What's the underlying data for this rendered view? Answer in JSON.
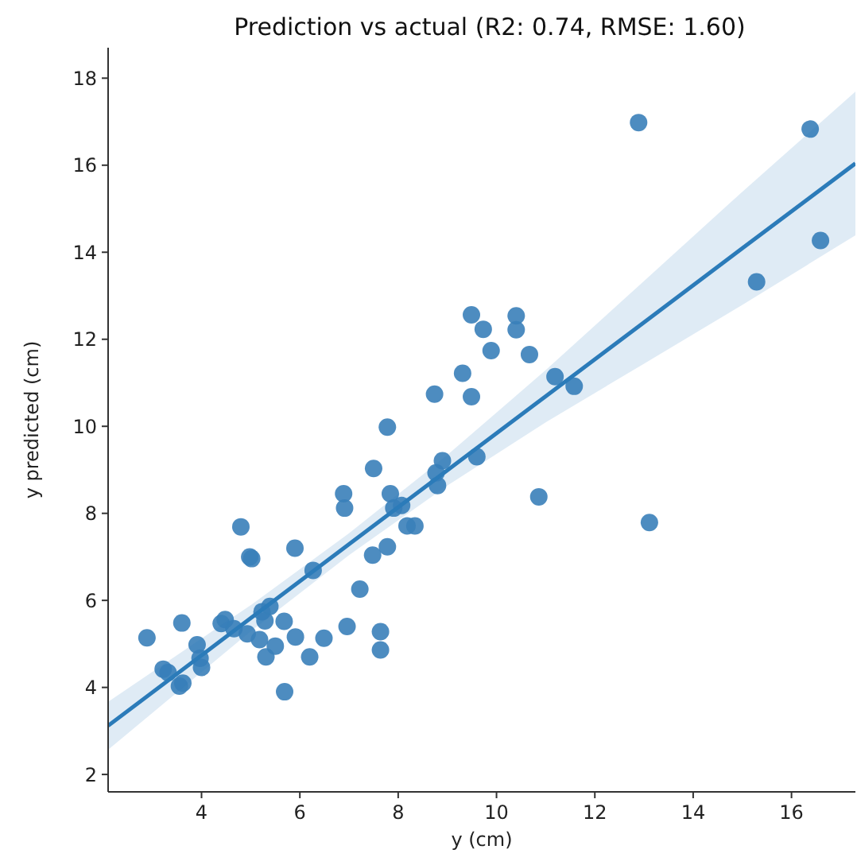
{
  "chart_data": {
    "type": "scatter",
    "title": "Prediction vs actual (R2: 0.74, RMSE: 1.60)",
    "xlabel": "y (cm)",
    "ylabel": "y predicted (cm)",
    "xlim": [
      2.1,
      17.3
    ],
    "ylim": [
      1.6,
      18.7
    ],
    "xticks": [
      4,
      6,
      8,
      10,
      12,
      14,
      16
    ],
    "yticks": [
      2,
      4,
      6,
      8,
      10,
      12,
      14,
      16,
      18
    ],
    "marker": "circle",
    "series": [
      {
        "color": "#3a80b9",
        "x": [
          2.89,
          3.22,
          3.32,
          3.55,
          3.62,
          3.6,
          3.91,
          3.97,
          4.0,
          4.4,
          4.48,
          4.66,
          4.8,
          4.98,
          5.02,
          4.93,
          5.18,
          5.23,
          5.39,
          5.29,
          5.31,
          5.5,
          5.68,
          5.69,
          5.91,
          5.9,
          6.2,
          6.27,
          6.49,
          6.89,
          6.91,
          6.96,
          7.22,
          7.48,
          7.78,
          7.64,
          7.64,
          7.84,
          7.91,
          8.07,
          8.18,
          8.34,
          8.8,
          9.49,
          9.73,
          10.4,
          10.4,
          9.89,
          10.67,
          9.31,
          8.74,
          9.49,
          11.19,
          11.58,
          7.78,
          7.5,
          8.9,
          8.77,
          9.6,
          10.86,
          12.89,
          16.38,
          16.59,
          15.29,
          13.11
        ],
        "values": [
          5.14,
          4.42,
          4.34,
          4.03,
          4.1,
          5.48,
          4.98,
          4.67,
          4.46,
          5.47,
          5.56,
          5.35,
          7.69,
          7.0,
          6.96,
          5.23,
          5.1,
          5.74,
          5.86,
          5.53,
          4.7,
          4.95,
          5.52,
          3.9,
          5.16,
          7.2,
          4.7,
          6.69,
          5.13,
          8.45,
          8.12,
          5.4,
          6.26,
          7.04,
          7.23,
          5.28,
          4.86,
          8.45,
          8.12,
          8.18,
          7.71,
          7.71,
          8.64,
          12.56,
          12.23,
          12.54,
          12.22,
          11.74,
          11.65,
          11.22,
          10.74,
          10.68,
          11.14,
          10.92,
          9.98,
          9.03,
          9.21,
          8.93,
          9.3,
          8.38,
          16.98,
          16.83,
          14.27,
          13.32,
          7.79
        ]
      },
      {
        "type": "line",
        "marker": "none",
        "color": "#2b7bb9",
        "x": [
          2.1,
          5,
          7,
          9,
          11,
          13,
          15,
          17.3
        ],
        "values": [
          3.12,
          5.59,
          7.29,
          8.99,
          10.69,
          12.39,
          14.09,
          16.04
        ],
        "lower": [
          2.57,
          5.29,
          7.04,
          8.64,
          10.09,
          11.44,
          12.79,
          14.39
        ],
        "upper": [
          3.67,
          5.89,
          7.54,
          9.34,
          11.29,
          13.34,
          15.39,
          17.69
        ]
      }
    ]
  }
}
